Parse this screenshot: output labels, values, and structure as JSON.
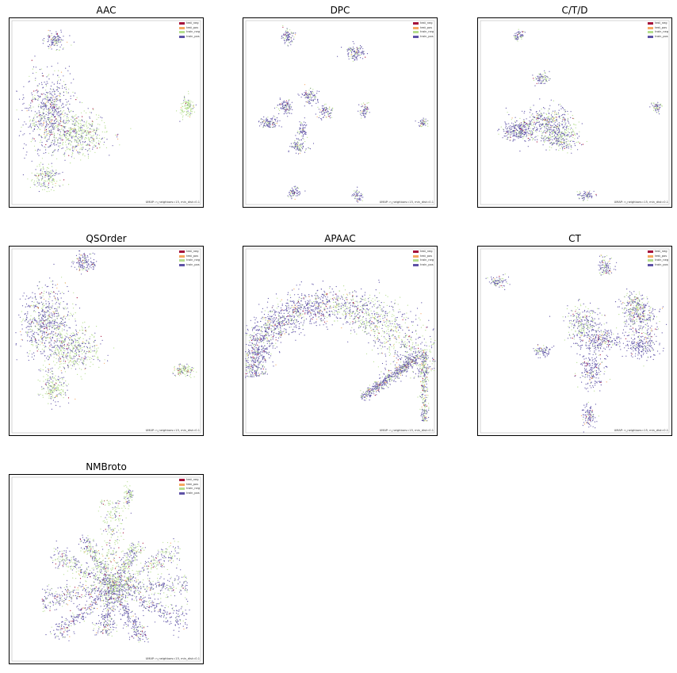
{
  "legend": [
    {
      "label": "test_neg",
      "color": "#a50f3a"
    },
    {
      "label": "test_pos",
      "color": "#f6a862"
    },
    {
      "label": "train_neg",
      "color": "#b5de8e"
    },
    {
      "label": "train_pos",
      "color": "#5e52a6"
    }
  ],
  "umap_caption": "UMAP: n_neighbors=15, min_dist=0.1",
  "chart_data": [
    {
      "type": "scatter",
      "title": "AAC",
      "xlabel": "",
      "ylabel": "",
      "grid": false,
      "legend_placement": "top-right",
      "series": [
        {
          "name": "test_neg"
        },
        {
          "name": "test_pos"
        },
        {
          "name": "train_neg"
        },
        {
          "name": "train_pos"
        }
      ]
    },
    {
      "type": "scatter",
      "title": "DPC",
      "xlabel": "",
      "ylabel": "",
      "grid": false,
      "legend_placement": "top-right",
      "series": [
        {
          "name": "test_neg"
        },
        {
          "name": "test_pos"
        },
        {
          "name": "train_neg"
        },
        {
          "name": "train_pos"
        }
      ]
    },
    {
      "type": "scatter",
      "title": "C/T/D",
      "xlabel": "",
      "ylabel": "",
      "grid": false,
      "legend_placement": "top-right",
      "series": [
        {
          "name": "test_neg"
        },
        {
          "name": "test_pos"
        },
        {
          "name": "train_neg"
        },
        {
          "name": "train_pos"
        }
      ]
    },
    {
      "type": "scatter",
      "title": "QSOrder",
      "xlabel": "",
      "ylabel": "",
      "grid": false,
      "legend_placement": "top-right",
      "series": [
        {
          "name": "test_neg"
        },
        {
          "name": "test_pos"
        },
        {
          "name": "train_neg"
        },
        {
          "name": "train_pos"
        }
      ]
    },
    {
      "type": "scatter",
      "title": "APAAC",
      "xlabel": "",
      "ylabel": "",
      "grid": false,
      "legend_placement": "top-right",
      "series": [
        {
          "name": "test_neg"
        },
        {
          "name": "test_pos"
        },
        {
          "name": "train_neg"
        },
        {
          "name": "train_pos"
        }
      ]
    },
    {
      "type": "scatter",
      "title": "CT",
      "xlabel": "",
      "ylabel": "",
      "grid": false,
      "legend_placement": "top-right",
      "series": [
        {
          "name": "test_neg"
        },
        {
          "name": "test_pos"
        },
        {
          "name": "train_neg"
        },
        {
          "name": "train_pos"
        }
      ]
    },
    {
      "type": "scatter",
      "title": "NMBroto",
      "xlabel": "",
      "ylabel": "",
      "grid": false,
      "legend_placement": "top-right",
      "series": [
        {
          "name": "test_neg"
        },
        {
          "name": "test_pos"
        },
        {
          "name": "train_neg"
        },
        {
          "name": "train_pos"
        }
      ]
    }
  ]
}
